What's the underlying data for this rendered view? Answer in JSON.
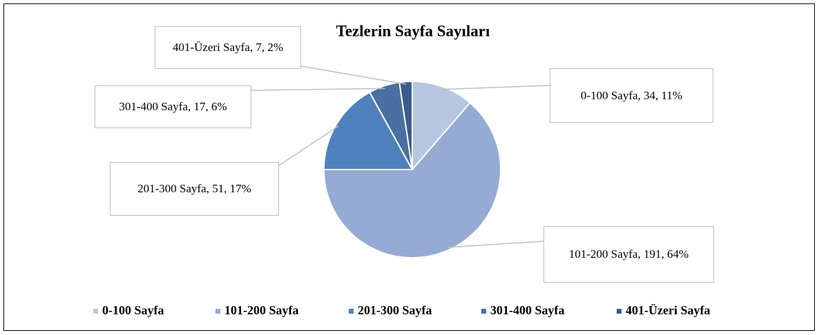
{
  "chart_data": {
    "type": "pie",
    "title": "Tezlerin Sayfa Sayıları",
    "categories": [
      "0-100 Sayfa",
      "101-200 Sayfa",
      "201-300 Sayfa",
      "301-400 Sayfa",
      "401-Üzeri Sayfa"
    ],
    "values": [
      34,
      191,
      51,
      17,
      7
    ],
    "value_labels": [
      "0-100 Sayfa, 34, 11%",
      "101-200 Sayfa, 191, 64%",
      "201-300 Sayfa, 51, 17%",
      "301-400 Sayfa, 17, 6%",
      "401-Üzeri Sayfa, 7, 2%"
    ],
    "colors": [
      "#b9c6e1",
      "#95abd4",
      "#4f81bd",
      "#4a6fa1",
      "#3b5c8e"
    ],
    "legend": "bottom"
  }
}
